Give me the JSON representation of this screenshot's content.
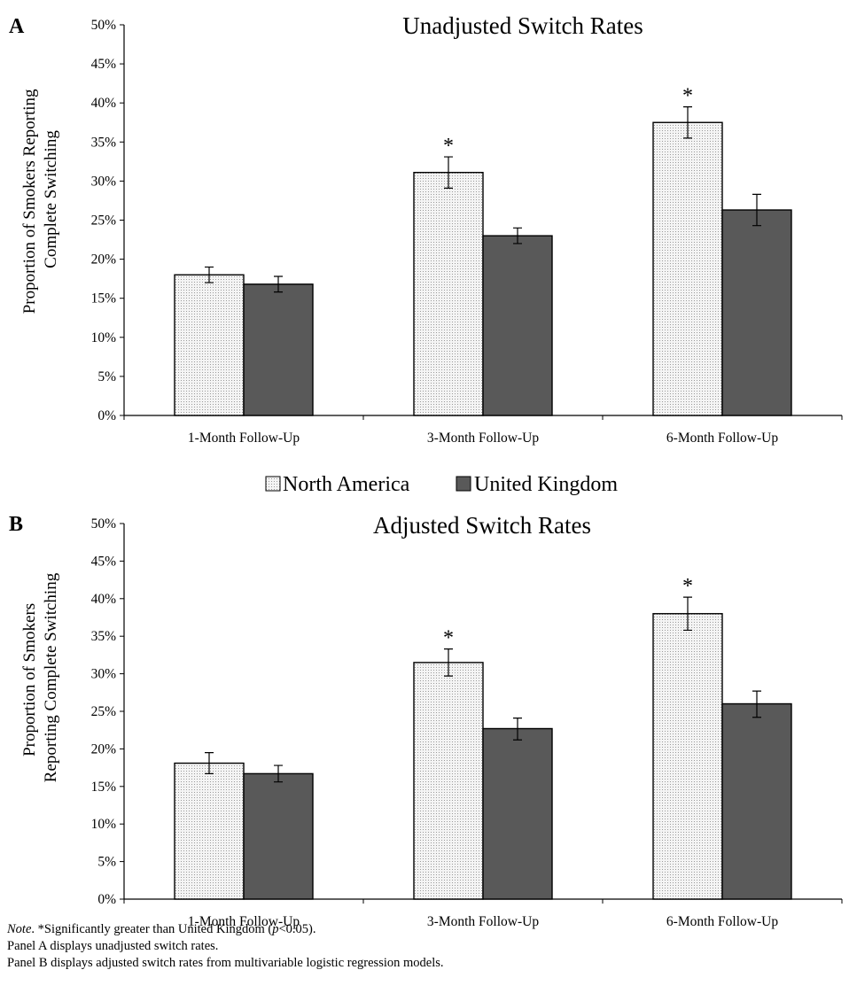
{
  "legend": {
    "items": [
      {
        "label": "North America",
        "fill": "#eeeeee",
        "stroke": "#000000"
      },
      {
        "label": "United Kingdom",
        "fill": "#595959",
        "stroke": "#000000"
      }
    ],
    "placement": "between-panels-center"
  },
  "colors": {
    "north_america": "#eeeeee",
    "united_kingdom": "#595959",
    "axis": "#000000"
  },
  "notes": {
    "line1_italic": "Note",
    "line1_a": ". *Significantly greater than United Kingdom (",
    "line1_p": "p",
    "line1_b": "<0.05).",
    "line2": "Panel A displays unadjusted switch rates.",
    "line3": "Panel B displays adjusted switch rates from multivariable logistic regression models."
  },
  "chart_data": [
    {
      "panel": "A",
      "type": "bar",
      "title": "Unadjusted Switch Rates",
      "ylabel_lines": [
        "Proportion of Smokers Reporting",
        "Complete Switching"
      ],
      "xlabel": "",
      "ylim": [
        0,
        50
      ],
      "yticks": [
        "0%",
        "5%",
        "10%",
        "15%",
        "20%",
        "25%",
        "30%",
        "35%",
        "40%",
        "45%",
        "50%"
      ],
      "grid": false,
      "categories": [
        "1-Month Follow-Up",
        "3-Month Follow-Up",
        "6-Month Follow-Up"
      ],
      "series": [
        {
          "name": "North America",
          "values": [
            18.0,
            31.1,
            37.5
          ],
          "error_low": [
            17.0,
            29.1,
            35.5
          ],
          "error_high": [
            19.0,
            33.1,
            39.5
          ]
        },
        {
          "name": "United Kingdom",
          "values": [
            16.8,
            23.0,
            26.3
          ],
          "error_low": [
            15.8,
            22.0,
            24.3
          ],
          "error_high": [
            17.8,
            24.0,
            28.3
          ]
        }
      ],
      "significance_marker": "*",
      "significant_categories": [
        1,
        2
      ]
    },
    {
      "panel": "B",
      "type": "bar",
      "title": "Adjusted Switch Rates",
      "ylabel_lines": [
        "Proportion of Smokers",
        "Reporting Complete Switching"
      ],
      "xlabel": "",
      "ylim": [
        0,
        50
      ],
      "yticks": [
        "0%",
        "5%",
        "10%",
        "15%",
        "20%",
        "25%",
        "30%",
        "35%",
        "40%",
        "45%",
        "50%"
      ],
      "grid": false,
      "categories": [
        "1-Month Follow-Up",
        "3-Month Follow-Up",
        "6-Month Follow-Up"
      ],
      "series": [
        {
          "name": "North America",
          "values": [
            18.1,
            31.5,
            38.0
          ],
          "error_low": [
            16.7,
            29.7,
            35.8
          ],
          "error_high": [
            19.5,
            33.3,
            40.2
          ]
        },
        {
          "name": "United Kingdom",
          "values": [
            16.7,
            22.7,
            26.0
          ],
          "error_low": [
            15.6,
            21.2,
            24.2
          ],
          "error_high": [
            17.8,
            24.1,
            27.7
          ]
        }
      ],
      "significance_marker": "*",
      "significant_categories": [
        1,
        2
      ]
    }
  ]
}
